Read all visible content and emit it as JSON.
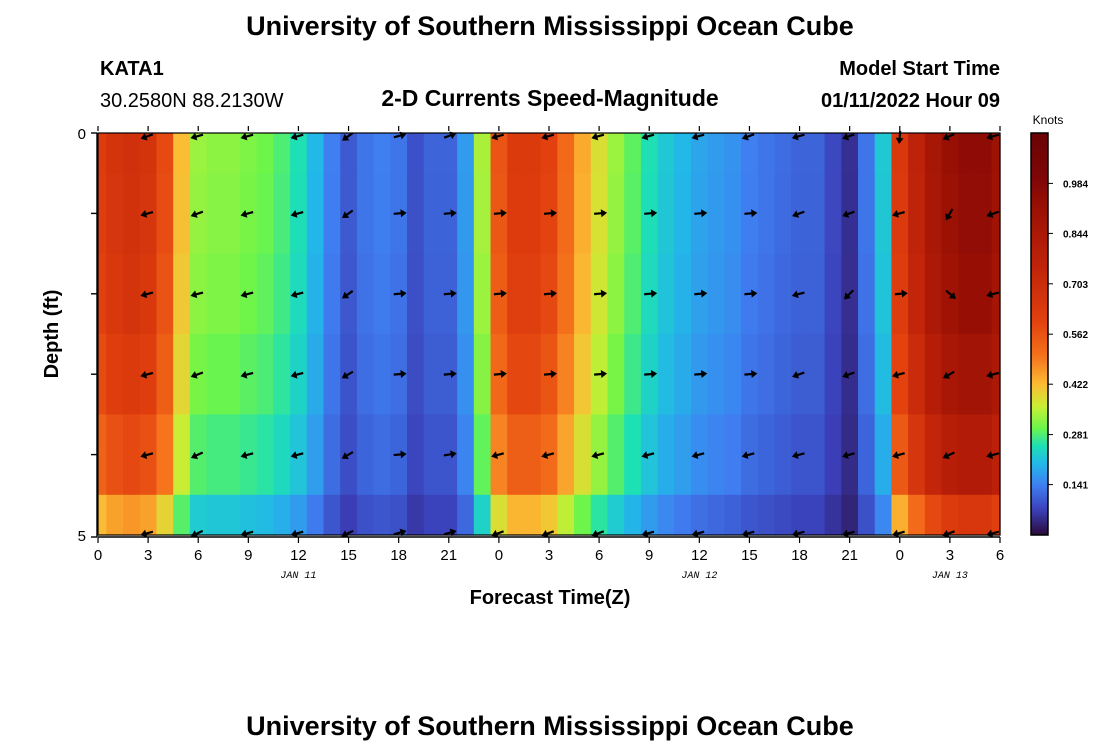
{
  "header": {
    "title": "University of Southern Mississippi Ocean Cube",
    "station": "KATA1",
    "coords": "30.2580N  88.2130W",
    "subtitle": "2-D Currents Speed-Magnitude",
    "model_start_label": "Model Start Time",
    "model_start_value": "01/11/2022 Hour 09"
  },
  "footer": {
    "title": "University of Southern Mississippi Ocean Cube"
  },
  "colors": {
    "arrow": "#000000",
    "axis": "#000000"
  },
  "chart_data": {
    "type": "heatmap",
    "title": "2-D Currents Speed-Magnitude",
    "xlabel": "Forecast Time(Z)",
    "ylabel": "Depth (ft)",
    "units": "Knots",
    "x_hours": [
      0,
      1,
      2,
      3,
      4,
      5,
      6,
      7,
      8,
      9,
      10,
      11,
      12,
      13,
      14,
      15,
      16,
      17,
      18,
      19,
      20,
      21,
      22,
      23,
      24,
      25,
      26,
      27,
      28,
      29,
      30,
      31,
      32,
      33,
      34,
      35,
      36,
      37,
      38,
      39,
      40,
      41,
      42,
      43,
      44,
      45,
      46,
      47,
      48,
      49,
      50,
      51,
      52,
      53,
      54
    ],
    "x_range": [
      0,
      54
    ],
    "x_tick_positions": [
      0,
      3,
      6,
      9,
      12,
      15,
      18,
      21,
      24,
      27,
      30,
      33,
      36,
      39,
      42,
      45,
      48,
      51,
      54
    ],
    "x_tick_labels": [
      "0",
      "3",
      "6",
      "9",
      "12",
      "15",
      "18",
      "21",
      "0",
      "3",
      "6",
      "9",
      "12",
      "15",
      "18",
      "21",
      "0",
      "3",
      "6"
    ],
    "date_labels": [
      {
        "label": "JAN 11",
        "hour": 12
      },
      {
        "label": "JAN 12",
        "hour": 36
      },
      {
        "label": "JAN 13",
        "hour": 51
      }
    ],
    "depth_range": [
      0,
      5
    ],
    "depth_rows": 5,
    "y_tick_labels": [
      "0",
      "5"
    ],
    "colorbar": {
      "min": 0.0,
      "max": 1.125,
      "ticks": [
        0.141,
        0.281,
        0.422,
        0.562,
        0.703,
        0.844,
        0.984
      ],
      "tick_labels": [
        "0.141",
        "0.281",
        "0.422",
        "0.562",
        "0.703",
        "0.844",
        "0.984"
      ],
      "stops": [
        {
          "v": 0.0,
          "c": "#2a0a3a"
        },
        {
          "v": 0.07,
          "c": "#3b3fb8"
        },
        {
          "v": 0.14,
          "c": "#3f7ff2"
        },
        {
          "v": 0.2,
          "c": "#22b8e8"
        },
        {
          "v": 0.25,
          "c": "#1ee0b4"
        },
        {
          "v": 0.3,
          "c": "#6ef54a"
        },
        {
          "v": 0.36,
          "c": "#c8ee34"
        },
        {
          "v": 0.42,
          "c": "#fbbd34"
        },
        {
          "v": 0.5,
          "c": "#f5731c"
        },
        {
          "v": 0.6,
          "c": "#e2400e"
        },
        {
          "v": 0.75,
          "c": "#c0230a"
        },
        {
          "v": 0.9,
          "c": "#9e1204"
        },
        {
          "v": 1.0,
          "c": "#7e0606"
        },
        {
          "v": 1.125,
          "c": "#6a0404"
        }
      ]
    },
    "speed_profile": {
      "hours": [
        0,
        1,
        2,
        3,
        4,
        5,
        6,
        7,
        8,
        9,
        10,
        11,
        12,
        13,
        14,
        15,
        16,
        17,
        18,
        19,
        20,
        21,
        22,
        23,
        24,
        25,
        26,
        27,
        28,
        29,
        30,
        31,
        32,
        33,
        34,
        35,
        36,
        37,
        38,
        39,
        40,
        41,
        42,
        43,
        44,
        45,
        46,
        47,
        48,
        49,
        50,
        51,
        52,
        53,
        54
      ],
      "values": [
        0.62,
        0.66,
        0.68,
        0.66,
        0.58,
        0.42,
        0.33,
        0.32,
        0.32,
        0.31,
        0.3,
        0.28,
        0.25,
        0.2,
        0.14,
        0.1,
        0.13,
        0.14,
        0.13,
        0.09,
        0.11,
        0.11,
        0.17,
        0.34,
        0.56,
        0.63,
        0.63,
        0.6,
        0.52,
        0.44,
        0.38,
        0.33,
        0.29,
        0.25,
        0.22,
        0.2,
        0.18,
        0.17,
        0.16,
        0.14,
        0.13,
        0.12,
        0.11,
        0.11,
        0.08,
        0.05,
        0.13,
        0.22,
        0.64,
        0.76,
        0.86,
        0.92,
        0.95,
        0.95,
        0.9
      ],
      "row_factors": [
        1.0,
        0.99,
        0.97,
        0.93,
        0.86,
        0.68
      ]
    },
    "arrows": {
      "hours": [
        3,
        6,
        9,
        12,
        15,
        18,
        21,
        24,
        27,
        30,
        33,
        36,
        39,
        42,
        45,
        48,
        51,
        54
      ],
      "depth_rows": [
        0,
        1,
        2,
        3,
        4,
        5
      ],
      "directions_deg": [
        [
          200,
          195,
          195,
          195,
          215,
          15,
          20,
          195,
          195,
          195,
          195,
          195,
          200,
          195,
          200,
          265,
          205,
          195
        ],
        [
          195,
          200,
          195,
          195,
          215,
          5,
          5,
          5,
          5,
          5,
          5,
          5,
          5,
          200,
          200,
          195,
          240,
          200
        ],
        [
          195,
          195,
          195,
          195,
          215,
          5,
          5,
          5,
          5,
          5,
          5,
          5,
          5,
          195,
          225,
          5,
          320,
          195
        ],
        [
          195,
          200,
          195,
          195,
          210,
          5,
          5,
          5,
          5,
          5,
          5,
          5,
          5,
          200,
          200,
          195,
          210,
          195
        ],
        [
          195,
          205,
          195,
          195,
          210,
          5,
          10,
          195,
          195,
          195,
          195,
          195,
          195,
          195,
          195,
          195,
          205,
          195
        ],
        [
          195,
          205,
          195,
          195,
          205,
          15,
          15,
          200,
          200,
          200,
          195,
          195,
          195,
          195,
          195,
          195,
          200,
          195
        ]
      ]
    }
  }
}
